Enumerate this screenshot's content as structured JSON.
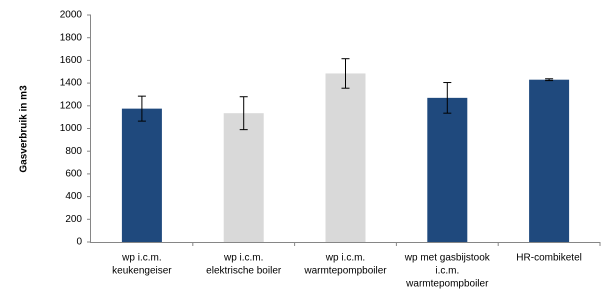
{
  "chart_data": {
    "type": "bar",
    "y_label": "Gasverbruik in m3",
    "categories": [
      [
        "wp i.c.m.",
        "keukengeiser"
      ],
      [
        "wp i.c.m.",
        "elektrische boiler"
      ],
      [
        "wp i.c.m.",
        "warmtepompboiler"
      ],
      [
        "wp met gasbijstook",
        "i.c.m.",
        "warmtepompboiler"
      ],
      [
        "HR-combiketel"
      ]
    ],
    "values": [
      1175,
      1135,
      1485,
      1270,
      1430
    ],
    "errors": [
      110,
      145,
      130,
      135,
      8
    ],
    "colors": [
      "#1f497d",
      "#d9d9d9",
      "#d9d9d9",
      "#1f497d",
      "#1f497d"
    ],
    "ylim": [
      0,
      2000
    ],
    "yticks": [
      0,
      200,
      400,
      600,
      800,
      1000,
      1200,
      1400,
      1600,
      1800,
      2000
    ],
    "grid": false
  }
}
